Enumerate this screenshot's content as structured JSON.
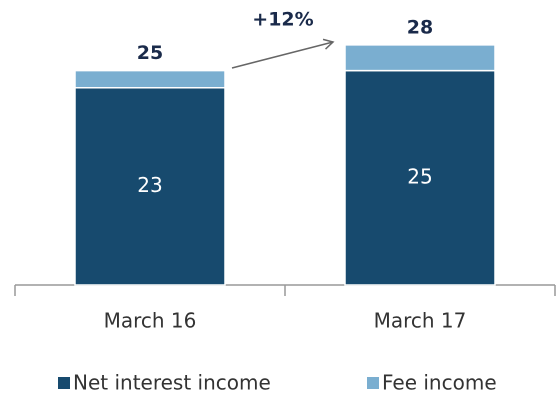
{
  "chart_data": {
    "type": "stacked_bar",
    "categories": [
      "March 16",
      "March 17"
    ],
    "series": [
      {
        "name": "Net interest income",
        "color": "#174a6e",
        "values": [
          23,
          25
        ]
      },
      {
        "name": "Fee income",
        "color": "#7aaed0",
        "values": [
          2,
          3
        ]
      }
    ],
    "totals": [
      25,
      28
    ],
    "annotation": "+12%",
    "ylim": [
      0,
      33
    ],
    "legend": "bottom"
  }
}
